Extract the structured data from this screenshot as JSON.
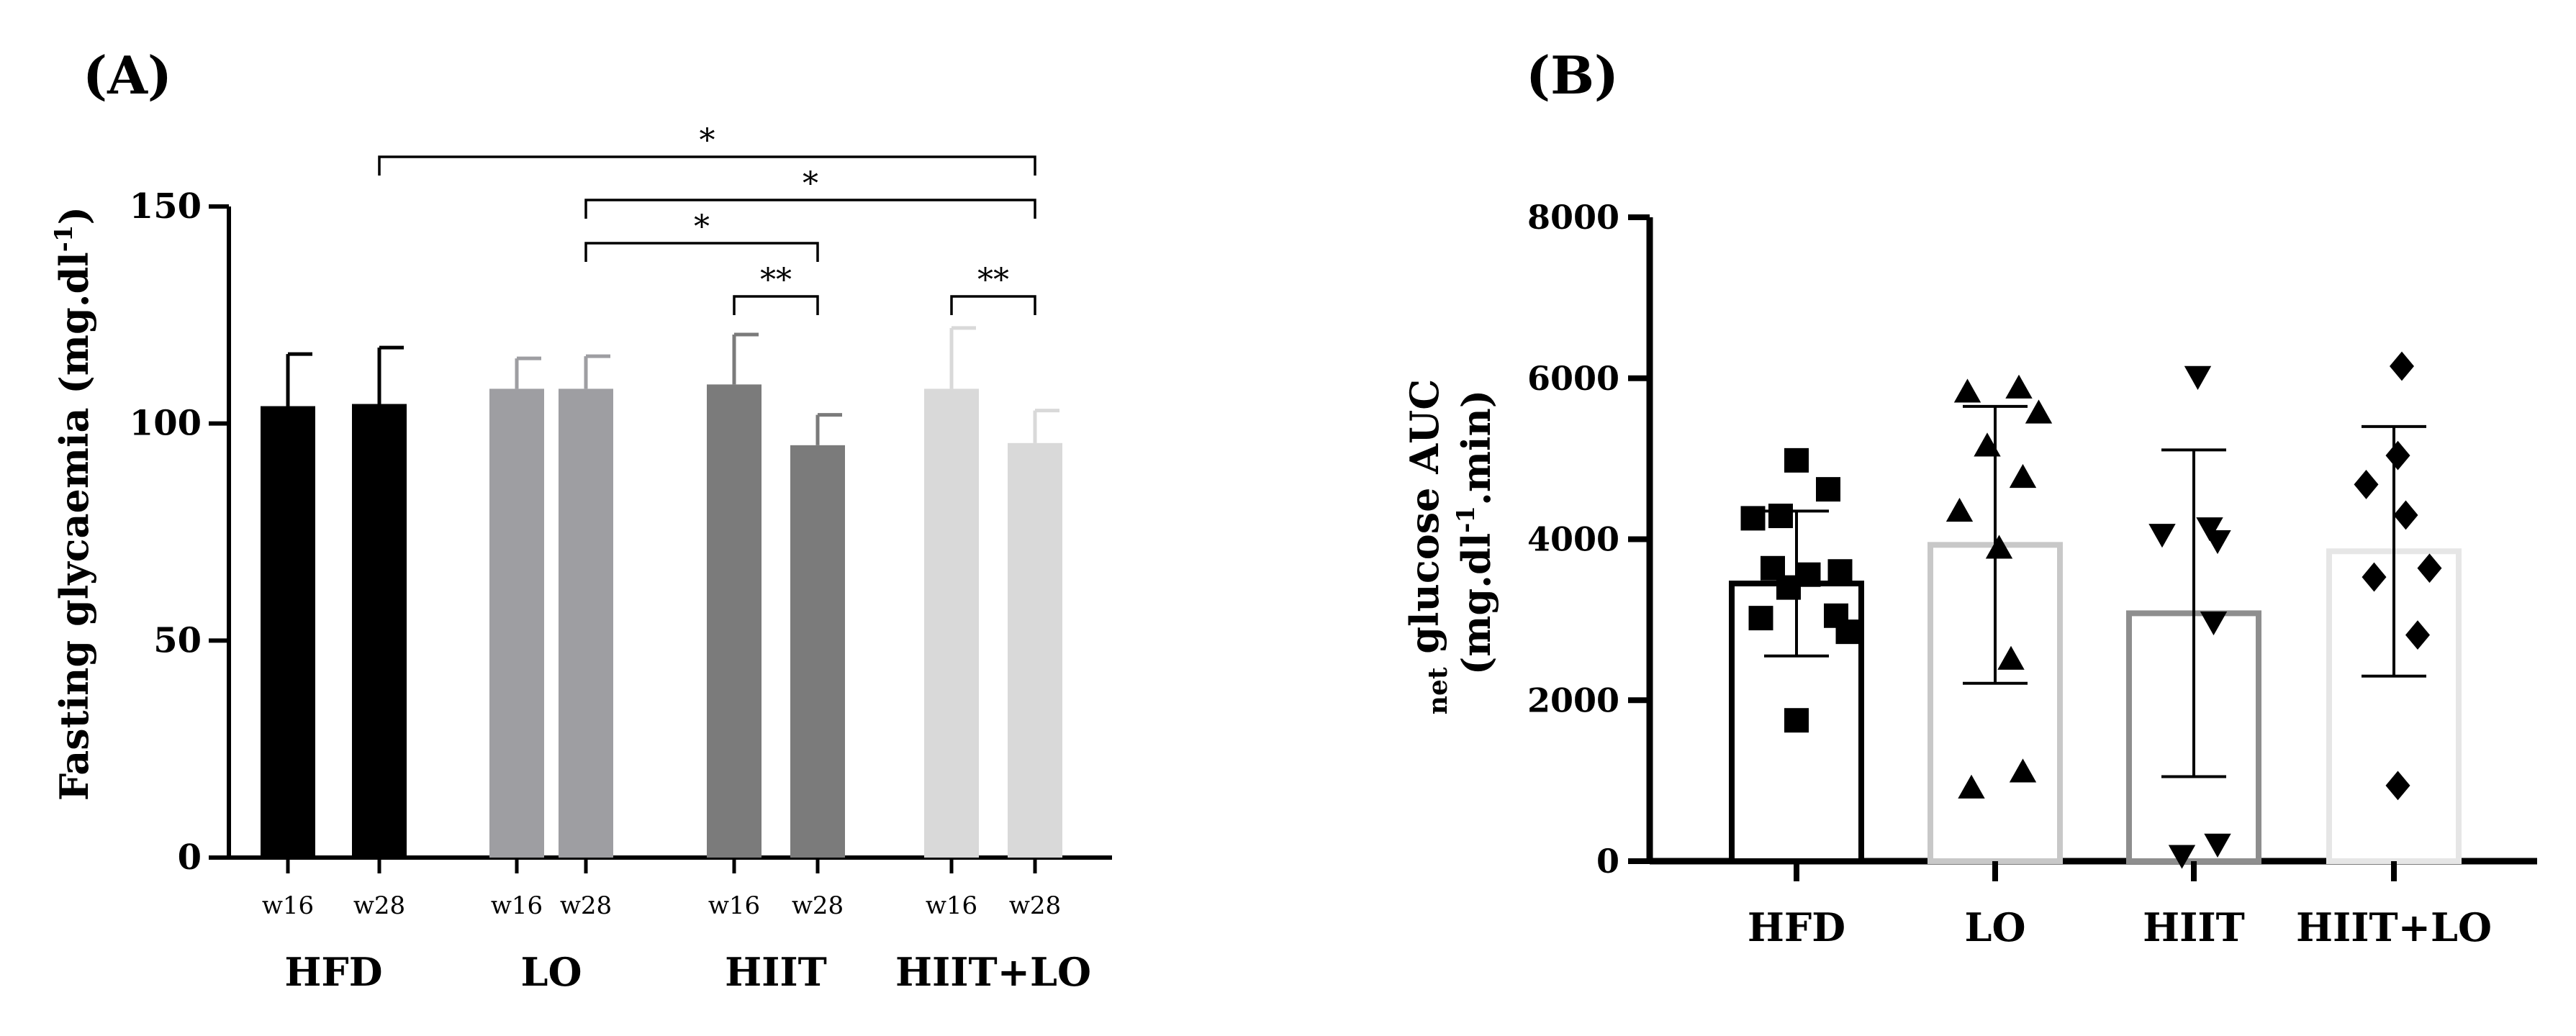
{
  "chart_data": [
    {
      "panel": "(A)",
      "type": "bar",
      "ylabel": "Fasting glycaemia (mg.dl",
      "ylabel_sup": "-1",
      "ylabel_end": ")",
      "ylim": [
        0,
        150
      ],
      "yticks": [
        0,
        50,
        100,
        150
      ],
      "groups": [
        "HFD",
        "LO",
        "HIIT",
        "HIIT+LO"
      ],
      "timepoints": [
        "w16",
        "w28"
      ],
      "bars": [
        {
          "group": "HFD",
          "time": "w16",
          "value": 104,
          "error": 12,
          "color": "#000000"
        },
        {
          "group": "HFD",
          "time": "w28",
          "value": 104.5,
          "error": 13,
          "color": "#000000"
        },
        {
          "group": "LO",
          "time": "w16",
          "value": 108,
          "error": 7,
          "color": "#9e9ea2"
        },
        {
          "group": "LO",
          "time": "w28",
          "value": 108,
          "error": 7.5,
          "color": "#9e9ea2"
        },
        {
          "group": "HIIT",
          "time": "w16",
          "value": 109,
          "error": 11.5,
          "color": "#7b7b7b"
        },
        {
          "group": "HIIT",
          "time": "w28",
          "value": 95,
          "error": 7,
          "color": "#7b7b7b"
        },
        {
          "group": "HIIT+LO",
          "time": "w16",
          "value": 108,
          "error": 14,
          "color": "#d9d9d9"
        },
        {
          "group": "HIIT+LO",
          "time": "w28",
          "value": 95.5,
          "error": 7.5,
          "color": "#d9d9d9"
        }
      ],
      "significance": [
        {
          "from": 1,
          "to": 7,
          "label": "*"
        },
        {
          "from": 3,
          "to": 7,
          "label": "*"
        },
        {
          "from": 3,
          "to": 5,
          "label": "*"
        },
        {
          "from": 4,
          "to": 5,
          "label": "**"
        },
        {
          "from": 6,
          "to": 7,
          "label": "**"
        }
      ]
    },
    {
      "panel": "(B)",
      "type": "bar",
      "ylabel_prefix": "net",
      "ylabel_line1": " glucose AUC",
      "ylabel_line2": "(mg.dl",
      "ylabel_sup": "-1",
      "ylabel_line2_end": ".min)",
      "ylim": [
        0,
        8000
      ],
      "yticks": [
        0,
        2000,
        4000,
        6000,
        8000
      ],
      "categories": [
        "HFD",
        "LO",
        "HIIT",
        "HIIT+LO"
      ],
      "series": [
        {
          "name": "HFD",
          "mean": 3450,
          "sd": 900,
          "color": "#000000",
          "marker": "square",
          "points": [
            4980,
            4620,
            4290,
            4260,
            3640,
            3600,
            3560,
            3400,
            3050,
            3020,
            2850,
            1750
          ]
        },
        {
          "name": "LO",
          "mean": 3930,
          "sd": 1720,
          "color": "#c8c8c8",
          "marker": "triangle-up",
          "points": [
            5870,
            5820,
            5560,
            5150,
            4760,
            4340,
            3880,
            2500,
            1100,
            900
          ]
        },
        {
          "name": "HIIT",
          "mean": 3080,
          "sd": 2030,
          "color": "#8e8e8e",
          "marker": "triangle-down",
          "points": [
            6030,
            4150,
            4070,
            3990,
            2980,
            220,
            80
          ]
        },
        {
          "name": "HIIT+LO",
          "mean": 3850,
          "sd": 1550,
          "color": "#e6e6e6",
          "marker": "diamond",
          "points": [
            6150,
            5040,
            4680,
            4300,
            3640,
            3530,
            2810,
            940
          ]
        }
      ]
    }
  ]
}
